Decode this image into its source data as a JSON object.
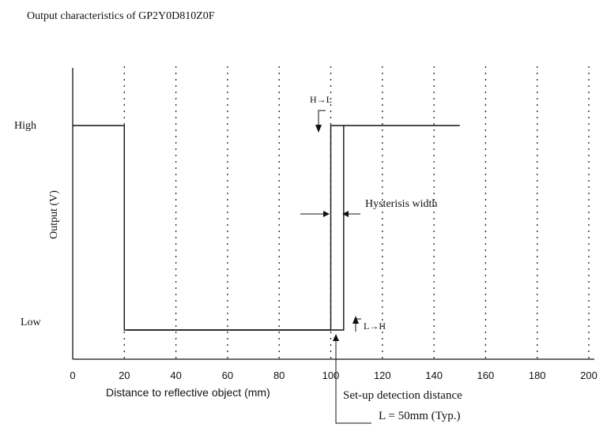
{
  "chart_data": {
    "type": "line",
    "title": "Output characteristics of GP2Y0D810Z0F",
    "xlabel": "Distance to reflective object (mm)",
    "ylabel": "Output (V)",
    "xlim": [
      0,
      200
    ],
    "xticks": [
      0,
      20,
      40,
      60,
      80,
      100,
      120,
      140,
      160,
      180,
      200
    ],
    "gridlines_x": [
      20,
      40,
      60,
      80,
      100,
      120,
      140,
      160,
      180,
      200
    ],
    "grid": "vertical dotted",
    "ylevels": [
      {
        "label": "High",
        "level": 1
      },
      {
        "label": "Low",
        "level": 0
      }
    ],
    "series": [
      {
        "points": [
          {
            "x": 0,
            "y": 1
          },
          {
            "x": 20,
            "y": 1
          },
          {
            "x": 20,
            "y": 0
          },
          {
            "x": 100,
            "y": 0
          },
          {
            "x": 100,
            "y": 1
          },
          {
            "x": 150,
            "y": 1
          }
        ]
      },
      {
        "points": [
          {
            "x": 21,
            "y": 0
          },
          {
            "x": 105,
            "y": 0
          },
          {
            "x": 105,
            "y": 1
          }
        ]
      }
    ],
    "annotations": {
      "h_to_l": "H→L",
      "l_to_h": "L→H",
      "hysteresis": "Hysterisis width",
      "setup_line1": "Set-up detection distance",
      "setup_line2": "L = 50mm (Typ.)"
    }
  }
}
